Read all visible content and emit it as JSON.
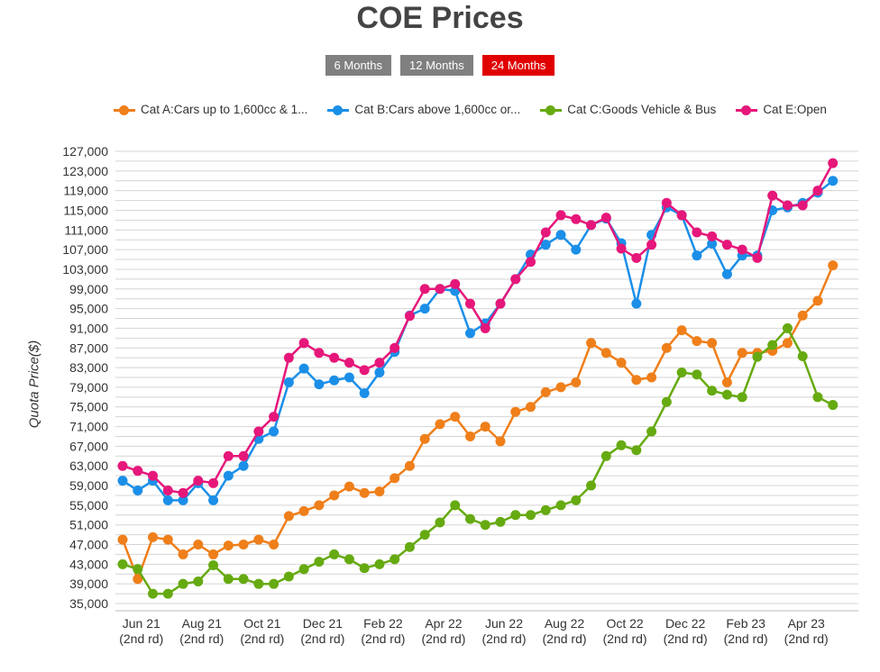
{
  "chart_data": {
    "type": "line",
    "title": "COE Prices",
    "ylabel": "Quota Price($)",
    "xlabel": "",
    "ylim": [
      33000,
      129000
    ],
    "yticks": [
      "35,000",
      "39,000",
      "43,000",
      "47,000",
      "51,000",
      "55,000",
      "59,000",
      "63,000",
      "67,000",
      "71,000",
      "75,000",
      "79,000",
      "83,000",
      "87,000",
      "91,000",
      "95,000",
      "99,000",
      "103,000",
      "107,000",
      "111,000",
      "115,000",
      "119,000",
      "123,000",
      "127,000"
    ],
    "ytick_values": [
      35000,
      39000,
      43000,
      47000,
      51000,
      55000,
      59000,
      63000,
      67000,
      71000,
      75000,
      79000,
      83000,
      87000,
      91000,
      95000,
      99000,
      103000,
      107000,
      111000,
      115000,
      119000,
      123000,
      127000
    ],
    "xticks": [
      {
        "index": 1,
        "month": "Jun 21",
        "round": "(2nd rd)"
      },
      {
        "index": 5,
        "month": "Aug 21",
        "round": "(2nd rd)"
      },
      {
        "index": 9,
        "month": "Oct 21",
        "round": "(2nd rd)"
      },
      {
        "index": 13,
        "month": "Dec 21",
        "round": "(2nd rd)"
      },
      {
        "index": 17,
        "month": "Feb 22",
        "round": "(2nd rd)"
      },
      {
        "index": 21,
        "month": "Apr 22",
        "round": "(2nd rd)"
      },
      {
        "index": 25,
        "month": "Jun 22",
        "round": "(2nd rd)"
      },
      {
        "index": 29,
        "month": "Aug 22",
        "round": "(2nd rd)"
      },
      {
        "index": 33,
        "month": "Oct 22",
        "round": "(2nd rd)"
      },
      {
        "index": 37,
        "month": "Dec 22",
        "round": "(2nd rd)"
      },
      {
        "index": 41,
        "month": "Feb 23",
        "round": "(2nd rd)"
      },
      {
        "index": 45,
        "month": "Apr 23",
        "round": "(2nd rd)"
      }
    ],
    "grid": true,
    "legend_position": "top",
    "series": [
      {
        "name": "Cat A:Cars up to 1,600cc & 1...",
        "color": "#ef7f1a",
        "values": [
          48000,
          40000,
          48500,
          48000,
          45000,
          47000,
          45000,
          46800,
          47000,
          48000,
          47000,
          52800,
          53800,
          55000,
          57000,
          58800,
          57500,
          57800,
          60500,
          63000,
          68500,
          71500,
          73000,
          69000,
          71000,
          68000,
          74000,
          75000,
          78000,
          79000,
          80000,
          88000,
          86000,
          84000,
          80500,
          81000,
          87000,
          90600,
          88400,
          88000,
          80000,
          86000,
          86000,
          86400,
          88000,
          93600,
          96600,
          103800
        ]
      },
      {
        "name": "Cat B:Cars above 1,600cc or...",
        "color": "#1b8fe8",
        "values": [
          60000,
          58000,
          60000,
          56000,
          56000,
          59500,
          56000,
          61000,
          63000,
          68500,
          70000,
          80000,
          82800,
          79600,
          80400,
          81000,
          77800,
          82000,
          86200,
          93600,
          95000,
          99000,
          98600,
          90000,
          92000,
          96000,
          101000,
          106000,
          108000,
          110000,
          107000,
          112000,
          113300,
          108300,
          96000,
          110000,
          115600,
          114000,
          105800,
          108200,
          102000,
          105800,
          105800,
          115000,
          115600,
          116500,
          118600,
          121000
        ]
      },
      {
        "name": "Cat C:Goods Vehicle & Bus",
        "color": "#66aa11",
        "values": [
          43000,
          42000,
          37000,
          37000,
          39000,
          39500,
          42800,
          40000,
          40000,
          39000,
          39000,
          40500,
          42000,
          43500,
          45000,
          44000,
          42200,
          43000,
          44000,
          46500,
          49000,
          51500,
          55000,
          52200,
          51000,
          51600,
          53000,
          53000,
          54000,
          55000,
          56000,
          59000,
          65000,
          67200,
          66200,
          70000,
          76000,
          82000,
          81600,
          78300,
          77500,
          77000,
          85200,
          87600,
          91000,
          85300,
          77000,
          75400
        ]
      },
      {
        "name": "Cat E:Open",
        "color": "#e6177a",
        "values": [
          63000,
          62000,
          61000,
          58000,
          57500,
          60000,
          59500,
          65000,
          65000,
          70000,
          73000,
          85000,
          88000,
          86000,
          85000,
          84000,
          82500,
          84000,
          87000,
          93500,
          99000,
          99000,
          100000,
          96000,
          91000,
          96000,
          101000,
          104500,
          110500,
          114000,
          113200,
          112000,
          113500,
          107200,
          105300,
          108000,
          116500,
          114000,
          110500,
          109700,
          108000,
          107000,
          105300,
          118000,
          116000,
          116000,
          119000,
          124600
        ]
      }
    ]
  },
  "range_buttons": [
    {
      "label": "6 Months",
      "active": false
    },
    {
      "label": "12 Months",
      "active": false
    },
    {
      "label": "24 Months",
      "active": true
    }
  ]
}
